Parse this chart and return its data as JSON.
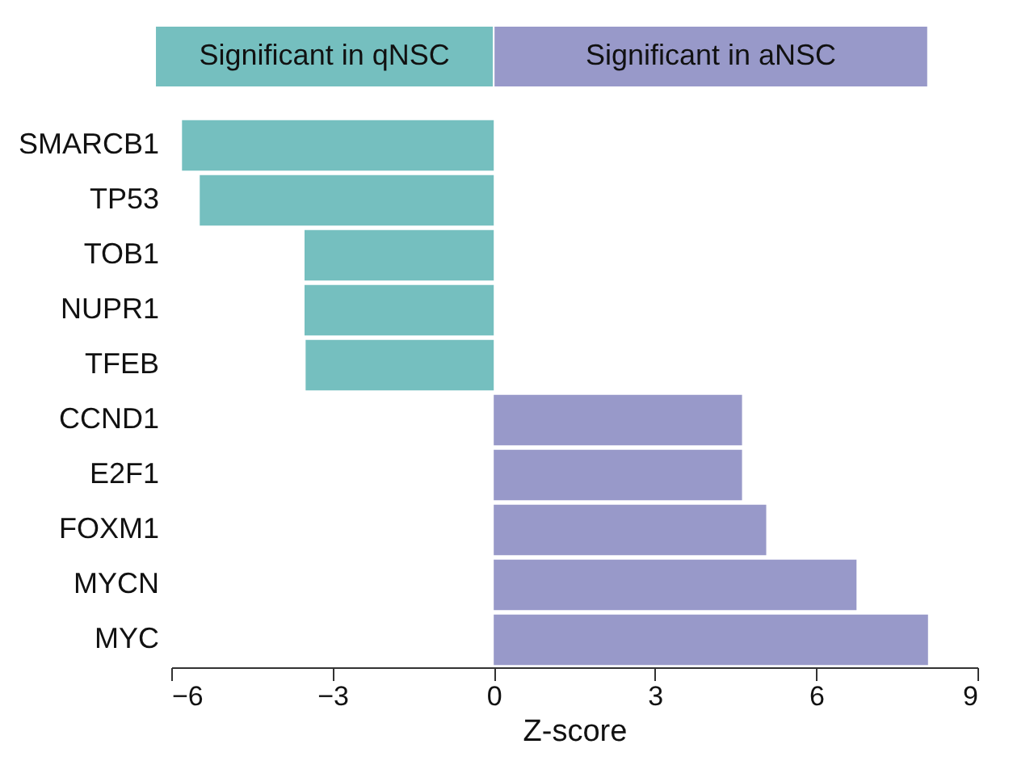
{
  "chart_data": {
    "type": "bar",
    "orientation": "horizontal",
    "xlabel": "Z-score",
    "categories": [
      "SMARCB1",
      "TP53",
      "TOB1",
      "NUPR1",
      "TFEB",
      "CCND1",
      "E2F1",
      "FOXM1",
      "MYCN",
      "MYC"
    ],
    "series": [
      {
        "name": "Significant in qNSC",
        "color": "#75bfbf",
        "values": [
          -5.8,
          -5.47,
          -3.52,
          -3.52,
          -3.5,
          null,
          null,
          null,
          null,
          null
        ]
      },
      {
        "name": "Significant in aNSC",
        "color": "#9899c9",
        "values": [
          null,
          null,
          null,
          null,
          null,
          4.62,
          4.62,
          5.07,
          6.75,
          8.08
        ]
      }
    ],
    "xlim": [
      -6,
      9
    ],
    "xticks": [
      -6,
      -3,
      0,
      3,
      6,
      9
    ],
    "grid": false,
    "legend": "top"
  }
}
